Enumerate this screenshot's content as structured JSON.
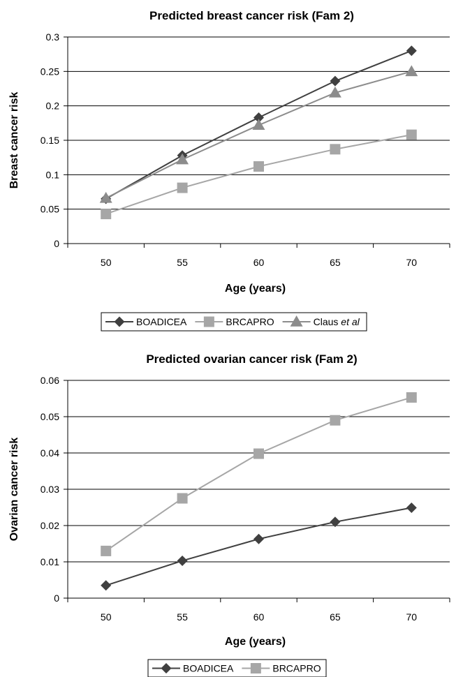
{
  "chart_data": [
    {
      "type": "line",
      "title": "Predicted breast cancer risk (Fam 2)",
      "xlabel": "Age (years)",
      "ylabel": "Breast cancer risk",
      "categories": [
        "50",
        "55",
        "60",
        "65",
        "70"
      ],
      "ylim": [
        0,
        0.3
      ],
      "yticks": [
        "0",
        "0.05",
        "0.1",
        "0.15",
        "0.2",
        "0.25",
        "0.3"
      ],
      "grid": true,
      "legend_position": "bottom",
      "series": [
        {
          "name": "BOADICEA",
          "values": [
            0.065,
            0.128,
            0.183,
            0.236,
            0.28
          ],
          "color": "#404040",
          "marker": "diamond"
        },
        {
          "name": "BRCAPRO",
          "values": [
            0.043,
            0.081,
            0.112,
            0.137,
            0.158
          ],
          "color": "#a6a6a6",
          "marker": "square"
        },
        {
          "name": "Claus",
          "name_suffix": "et al",
          "values": [
            0.066,
            0.122,
            0.172,
            0.219,
            0.25
          ],
          "color": "#8c8c8c",
          "marker": "triangle"
        }
      ]
    },
    {
      "type": "line",
      "title": "Predicted ovarian cancer risk (Fam 2)",
      "xlabel": "Age (years)",
      "ylabel": "Ovarian cancer risk",
      "categories": [
        "50",
        "55",
        "60",
        "65",
        "70"
      ],
      "ylim": [
        0,
        0.06
      ],
      "yticks": [
        "0",
        "0.01",
        "0.02",
        "0.03",
        "0.04",
        "0.05",
        "0.06"
      ],
      "grid": true,
      "legend_position": "bottom",
      "series": [
        {
          "name": "BOADICEA",
          "values": [
            0.0035,
            0.0103,
            0.0163,
            0.021,
            0.0249
          ],
          "color": "#404040",
          "marker": "diamond"
        },
        {
          "name": "BRCAPRO",
          "values": [
            0.013,
            0.0275,
            0.0398,
            0.049,
            0.0553
          ],
          "color": "#a6a6a6",
          "marker": "square"
        }
      ]
    }
  ]
}
